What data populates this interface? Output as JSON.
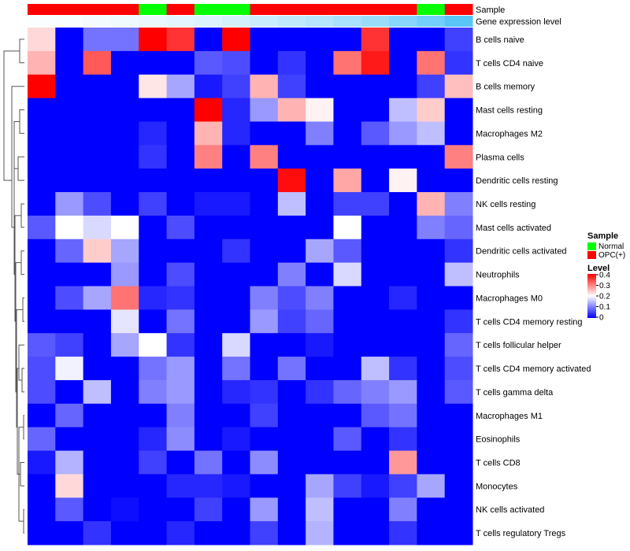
{
  "chart_data": {
    "type": "heatmap",
    "annotation_track_labels": [
      "Sample",
      "Gene expression level"
    ],
    "sample_groups": [
      "OPC(+)",
      "OPC(+)",
      "OPC(+)",
      "OPC(+)",
      "Normal",
      "OPC(+)",
      "Normal",
      "Normal",
      "OPC(+)",
      "OPC(+)",
      "OPC(+)",
      "OPC(+)",
      "OPC(+)",
      "OPC(+)",
      "Normal",
      "OPC(+)"
    ],
    "gene_expression_level": [
      0.02,
      0.04,
      0.06,
      0.09,
      0.12,
      0.16,
      0.2,
      0.25,
      0.3,
      0.36,
      0.42,
      0.5,
      0.58,
      0.68,
      0.8,
      0.95
    ],
    "rows": [
      "B cells naive",
      "T cells CD4 naive",
      "B cells memory",
      "Mast cells resting",
      "Macrophages M2",
      "Plasma cells",
      "Dendritic cells resting",
      "NK cells resting",
      "Mast cells activated",
      "Dendritic cells activated",
      "Neutrophils",
      "Macrophages M0",
      "T cells CD4 memory resting",
      "T cells follicular helper",
      "T cells CD4 memory activated",
      "T cells gamma delta",
      "Macrophages M1",
      "Eosinophils",
      "T cells CD8",
      "Monocytes",
      "NK cells activated",
      "T cells regulatory  Tregs"
    ],
    "values": [
      [
        0.23,
        0.0,
        0.09,
        0.09,
        0.4,
        0.36,
        0.0,
        0.4,
        0.0,
        0.0,
        0.0,
        0.0,
        0.36,
        0.0,
        0.0,
        0.05
      ],
      [
        0.26,
        0.0,
        0.33,
        0.0,
        0.0,
        0.0,
        0.07,
        0.06,
        0.0,
        0.04,
        0.0,
        0.31,
        0.38,
        0.0,
        0.31,
        0.04
      ],
      [
        0.4,
        0.0,
        0.0,
        0.0,
        0.22,
        0.13,
        0.02,
        0.05,
        0.26,
        0.05,
        0.0,
        0.0,
        0.0,
        0.0,
        0.05,
        0.25
      ],
      [
        0.0,
        0.0,
        0.0,
        0.0,
        0.0,
        0.0,
        0.4,
        0.03,
        0.12,
        0.26,
        0.21,
        0.0,
        0.0,
        0.15,
        0.24,
        0.0
      ],
      [
        0.0,
        0.0,
        0.0,
        0.0,
        0.03,
        0.0,
        0.26,
        0.03,
        0.0,
        0.0,
        0.1,
        0.0,
        0.07,
        0.12,
        0.15,
        0.0
      ],
      [
        0.0,
        0.0,
        0.0,
        0.0,
        0.04,
        0.0,
        0.3,
        0.0,
        0.3,
        0.0,
        0.0,
        0.0,
        0.0,
        0.0,
        0.0,
        0.3
      ],
      [
        0.0,
        0.0,
        0.0,
        0.0,
        0.0,
        0.0,
        0.0,
        0.0,
        0.0,
        0.39,
        0.0,
        0.27,
        0.0,
        0.21,
        0.0,
        0.0
      ],
      [
        0.0,
        0.12,
        0.06,
        0.0,
        0.05,
        0.0,
        0.02,
        0.02,
        0.0,
        0.15,
        0.0,
        0.05,
        0.05,
        0.0,
        0.26,
        0.1
      ],
      [
        0.07,
        0.2,
        0.17,
        0.2,
        0.0,
        0.06,
        0.0,
        0.0,
        0.0,
        0.0,
        0.0,
        0.2,
        0.0,
        0.0,
        0.1,
        0.08
      ],
      [
        0.0,
        0.08,
        0.24,
        0.13,
        0.0,
        0.0,
        0.0,
        0.04,
        0.0,
        0.0,
        0.13,
        0.07,
        0.0,
        0.0,
        0.0,
        0.04
      ],
      [
        0.0,
        0.0,
        0.0,
        0.12,
        0.0,
        0.06,
        0.0,
        0.0,
        0.0,
        0.1,
        0.0,
        0.17,
        0.0,
        0.0,
        0.0,
        0.15
      ],
      [
        0.0,
        0.06,
        0.13,
        0.31,
        0.03,
        0.04,
        0.0,
        0.0,
        0.1,
        0.06,
        0.1,
        0.0,
        0.0,
        0.03,
        0.0,
        0.0
      ],
      [
        0.0,
        0.0,
        0.0,
        0.18,
        0.0,
        0.09,
        0.0,
        0.0,
        0.12,
        0.05,
        0.08,
        0.0,
        0.0,
        0.0,
        0.0,
        0.04
      ],
      [
        0.07,
        0.05,
        0.0,
        0.13,
        0.2,
        0.04,
        0.0,
        0.17,
        0.0,
        0.0,
        0.02,
        0.0,
        0.0,
        0.0,
        0.0,
        0.08
      ],
      [
        0.06,
        0.19,
        0.0,
        0.0,
        0.09,
        0.12,
        0.0,
        0.09,
        0.0,
        0.09,
        0.0,
        0.0,
        0.15,
        0.04,
        0.0,
        0.06
      ],
      [
        0.06,
        0.0,
        0.15,
        0.0,
        0.1,
        0.12,
        0.0,
        0.03,
        0.04,
        0.0,
        0.04,
        0.08,
        0.1,
        0.12,
        0.0,
        0.07
      ],
      [
        0.0,
        0.08,
        0.0,
        0.0,
        0.0,
        0.1,
        0.0,
        0.0,
        0.05,
        0.0,
        0.0,
        0.0,
        0.07,
        0.09,
        0.0,
        0.0
      ],
      [
        0.08,
        0.0,
        0.0,
        0.0,
        0.03,
        0.11,
        0.0,
        0.02,
        0.0,
        0.0,
        0.0,
        0.07,
        0.0,
        0.04,
        0.0,
        0.0
      ],
      [
        0.02,
        0.14,
        0.0,
        0.0,
        0.05,
        0.0,
        0.09,
        0.0,
        0.11,
        0.0,
        0.0,
        0.0,
        0.0,
        0.28,
        0.0,
        0.0
      ],
      [
        0.0,
        0.23,
        0.0,
        0.0,
        0.0,
        0.03,
        0.03,
        0.02,
        0.0,
        0.0,
        0.13,
        0.05,
        0.02,
        0.05,
        0.13,
        0.0
      ],
      [
        0.0,
        0.07,
        0.0,
        0.01,
        0.0,
        0.0,
        0.05,
        0.0,
        0.12,
        0.0,
        0.15,
        0.0,
        0.0,
        0.1,
        0.0,
        0.0
      ],
      [
        0.0,
        0.0,
        0.04,
        0.0,
        0.0,
        0.03,
        0.0,
        0.0,
        0.05,
        0.0,
        0.14,
        0.0,
        0.0,
        0.04,
        0.0,
        0.0
      ]
    ],
    "color_scale": {
      "min": 0,
      "mid": 0.2,
      "max": 0.4,
      "low_color": "#0000ff",
      "mid_color": "#ffffff",
      "high_color": "#ff0000"
    },
    "legend": {
      "position": "right",
      "sample": {
        "title": "Sample",
        "items": [
          {
            "label": "Normal",
            "color": "#00ff00"
          },
          {
            "label": "OPC(+)",
            "color": "#ff0000"
          }
        ]
      },
      "level": {
        "title": "Level",
        "ticks": [
          "0.4",
          "0.3",
          "0.2",
          "0.1",
          "0"
        ]
      }
    },
    "annotation_colors": {
      "Normal": "#00ff00",
      "OPC(+)": "#ff0000",
      "expr_low": "#ffffff",
      "expr_high": "#4fc3f7"
    },
    "dendrogram": "left"
  }
}
